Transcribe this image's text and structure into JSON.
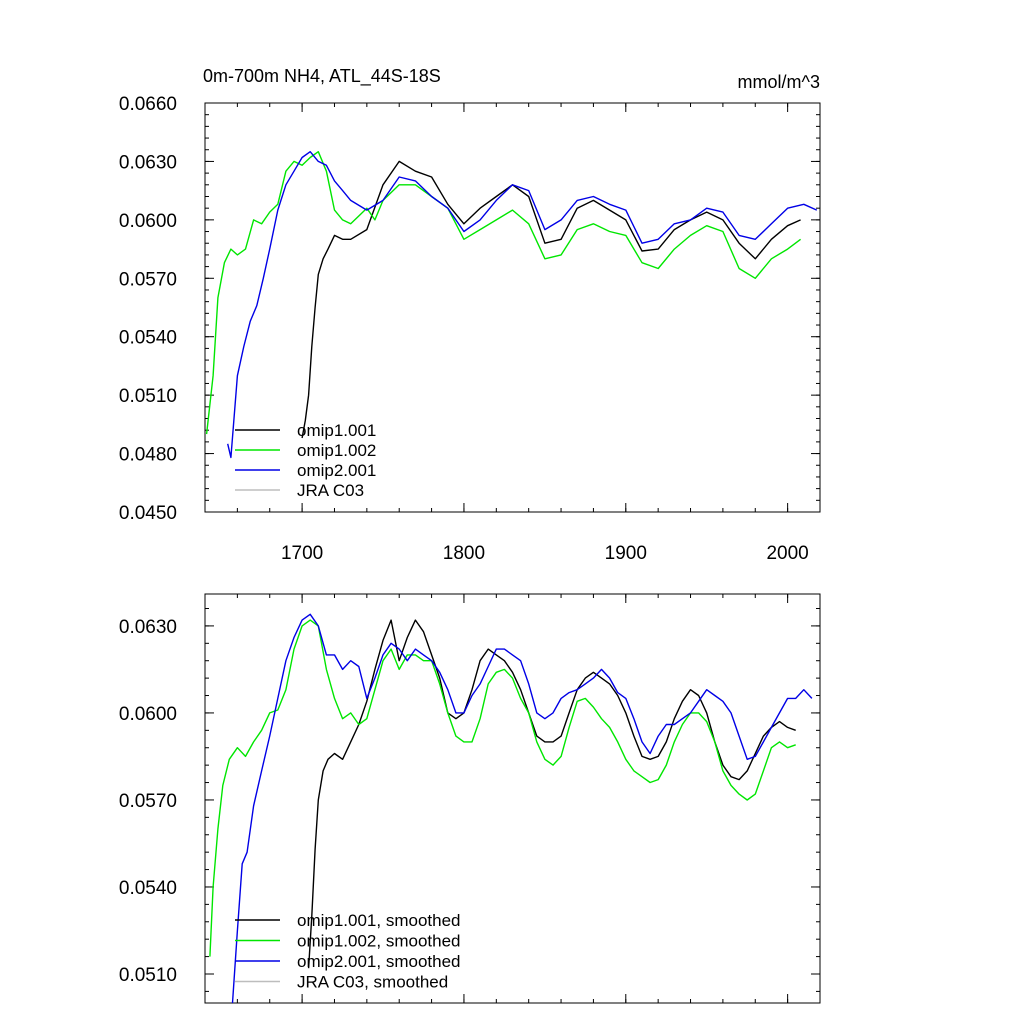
{
  "colors": {
    "omip1_001": "#000000",
    "omip1_002": "#00e600",
    "omip2_001": "#0000e6",
    "jra_c03": "#bdbdbd"
  },
  "chart_data": [
    {
      "type": "line",
      "title": "0m-700m NH4, ATL_44S-18S",
      "units": "mmol/m^3",
      "xlim": [
        1640,
        2020
      ],
      "ylim": [
        0.045,
        0.066
      ],
      "x_ticks": [
        1700,
        1800,
        1900,
        2000
      ],
      "x_tick_labels": [
        "1700",
        "1800",
        "1900",
        "2000"
      ],
      "y_ticks": [
        0.045,
        0.048,
        0.051,
        0.054,
        0.057,
        0.06,
        0.063,
        0.066
      ],
      "y_tick_labels": [
        "0.0450",
        "0.0480",
        "0.0510",
        "0.0540",
        "0.0570",
        "0.0600",
        "0.0630",
        "0.0660"
      ],
      "legend_position": "lower-left",
      "series": [
        {
          "key": "omip1_001",
          "name": "omip1.001",
          "color": "#000000",
          "x": [
            1700,
            1702,
            1704,
            1706,
            1708,
            1710,
            1713,
            1716,
            1720,
            1725,
            1730,
            1740,
            1750,
            1760,
            1770,
            1780,
            1790,
            1800,
            1810,
            1820,
            1830,
            1840,
            1850,
            1860,
            1870,
            1880,
            1890,
            1900,
            1910,
            1920,
            1930,
            1940,
            1950,
            1960,
            1970,
            1980,
            1990,
            2000,
            2008
          ],
          "y": [
            0.0488,
            0.0497,
            0.051,
            0.0535,
            0.0555,
            0.0572,
            0.058,
            0.0585,
            0.0592,
            0.059,
            0.059,
            0.0595,
            0.0618,
            0.063,
            0.0625,
            0.0622,
            0.0608,
            0.0598,
            0.0606,
            0.0612,
            0.0618,
            0.0612,
            0.0588,
            0.059,
            0.0606,
            0.061,
            0.0605,
            0.06,
            0.0584,
            0.0585,
            0.0595,
            0.06,
            0.0604,
            0.06,
            0.0588,
            0.058,
            0.059,
            0.0597,
            0.06
          ]
        },
        {
          "key": "omip1_002",
          "name": "omip1.002",
          "color": "#00e600",
          "x": [
            1641,
            1645,
            1648,
            1652,
            1656,
            1660,
            1665,
            1670,
            1675,
            1680,
            1685,
            1690,
            1695,
            1700,
            1705,
            1710,
            1715,
            1720,
            1725,
            1730,
            1735,
            1740,
            1745,
            1750,
            1760,
            1770,
            1780,
            1790,
            1800,
            1810,
            1820,
            1830,
            1840,
            1850,
            1860,
            1870,
            1880,
            1890,
            1900,
            1910,
            1920,
            1930,
            1940,
            1950,
            1960,
            1970,
            1980,
            1990,
            2000,
            2008
          ],
          "y": [
            0.049,
            0.052,
            0.056,
            0.0578,
            0.0585,
            0.0582,
            0.0585,
            0.06,
            0.0598,
            0.0604,
            0.0608,
            0.0625,
            0.063,
            0.0628,
            0.0632,
            0.0635,
            0.0625,
            0.0605,
            0.06,
            0.0598,
            0.0602,
            0.0606,
            0.06,
            0.061,
            0.0618,
            0.0618,
            0.0612,
            0.0606,
            0.059,
            0.0595,
            0.06,
            0.0605,
            0.0598,
            0.058,
            0.0582,
            0.0595,
            0.0598,
            0.0594,
            0.0592,
            0.0578,
            0.0575,
            0.0585,
            0.0592,
            0.0597,
            0.0594,
            0.0575,
            0.057,
            0.058,
            0.0585,
            0.059
          ]
        },
        {
          "key": "omip2_001",
          "name": "omip2.001",
          "color": "#0000e6",
          "x": [
            1654,
            1656,
            1660,
            1664,
            1668,
            1672,
            1676,
            1680,
            1685,
            1690,
            1695,
            1700,
            1705,
            1710,
            1715,
            1720,
            1725,
            1730,
            1740,
            1750,
            1760,
            1770,
            1780,
            1790,
            1800,
            1810,
            1820,
            1830,
            1840,
            1850,
            1860,
            1870,
            1880,
            1890,
            1900,
            1910,
            1920,
            1930,
            1940,
            1950,
            1960,
            1970,
            1980,
            1990,
            2000,
            2010,
            2018
          ],
          "y": [
            0.0485,
            0.0478,
            0.052,
            0.0535,
            0.0548,
            0.0556,
            0.057,
            0.0585,
            0.0605,
            0.0618,
            0.0625,
            0.0632,
            0.0635,
            0.063,
            0.0628,
            0.062,
            0.0615,
            0.061,
            0.0605,
            0.061,
            0.0622,
            0.062,
            0.0612,
            0.0606,
            0.0594,
            0.06,
            0.061,
            0.0618,
            0.0615,
            0.0595,
            0.06,
            0.061,
            0.0612,
            0.0608,
            0.0605,
            0.0588,
            0.059,
            0.0598,
            0.06,
            0.0606,
            0.0604,
            0.0592,
            0.059,
            0.0598,
            0.0606,
            0.0608,
            0.0605
          ]
        },
        {
          "key": "jra_c03",
          "name": "JRA C03",
          "color": "#bdbdbd",
          "x": [],
          "y": []
        }
      ]
    },
    {
      "type": "line",
      "title": "",
      "units": "",
      "xlim": [
        1640,
        2020
      ],
      "ylim": [
        0.05,
        0.0641
      ],
      "x_ticks": [
        1700,
        1800,
        1900,
        2000
      ],
      "x_tick_labels": [
        "",
        "",
        "",
        ""
      ],
      "y_ticks": [
        0.051,
        0.054,
        0.057,
        0.06,
        0.063
      ],
      "y_tick_labels": [
        "0.0510",
        "0.0540",
        "0.0570",
        "0.0600",
        "0.0630"
      ],
      "legend_position": "lower-left",
      "series": [
        {
          "key": "omip1_001",
          "name": "omip1.001, smoothed",
          "color": "#000000",
          "x": [
            1704,
            1706,
            1708,
            1710,
            1713,
            1716,
            1720,
            1725,
            1730,
            1735,
            1740,
            1745,
            1750,
            1755,
            1760,
            1765,
            1770,
            1775,
            1780,
            1785,
            1790,
            1795,
            1800,
            1805,
            1810,
            1815,
            1820,
            1825,
            1830,
            1835,
            1840,
            1845,
            1850,
            1855,
            1860,
            1865,
            1870,
            1875,
            1880,
            1885,
            1890,
            1895,
            1900,
            1905,
            1910,
            1915,
            1920,
            1925,
            1930,
            1935,
            1940,
            1945,
            1950,
            1955,
            1960,
            1965,
            1970,
            1975,
            1980,
            1985,
            1990,
            1995,
            2000,
            2005
          ],
          "y": [
            0.0512,
            0.053,
            0.0553,
            0.057,
            0.058,
            0.0584,
            0.0586,
            0.0584,
            0.059,
            0.0596,
            0.0604,
            0.0615,
            0.0625,
            0.0632,
            0.0618,
            0.0626,
            0.0632,
            0.0628,
            0.062,
            0.0612,
            0.06,
            0.0598,
            0.06,
            0.0608,
            0.0618,
            0.0622,
            0.062,
            0.0618,
            0.0614,
            0.0608,
            0.06,
            0.0592,
            0.059,
            0.059,
            0.0592,
            0.06,
            0.0608,
            0.0612,
            0.0614,
            0.0612,
            0.061,
            0.0606,
            0.06,
            0.0592,
            0.0585,
            0.0584,
            0.0585,
            0.059,
            0.0598,
            0.0604,
            0.0608,
            0.0606,
            0.06,
            0.059,
            0.0582,
            0.0578,
            0.0577,
            0.058,
            0.0586,
            0.0592,
            0.0595,
            0.0597,
            0.0595,
            0.0594
          ]
        },
        {
          "key": "omip1_002",
          "name": "omip1.002, smoothed",
          "color": "#00e600",
          "x": [
            1643,
            1645,
            1648,
            1651,
            1655,
            1660,
            1665,
            1670,
            1675,
            1680,
            1685,
            1690,
            1695,
            1700,
            1705,
            1710,
            1715,
            1720,
            1725,
            1730,
            1735,
            1740,
            1745,
            1750,
            1755,
            1760,
            1765,
            1770,
            1775,
            1780,
            1785,
            1790,
            1795,
            1800,
            1805,
            1810,
            1815,
            1820,
            1825,
            1830,
            1835,
            1840,
            1845,
            1850,
            1855,
            1860,
            1865,
            1870,
            1875,
            1880,
            1885,
            1890,
            1895,
            1900,
            1905,
            1910,
            1915,
            1920,
            1925,
            1930,
            1935,
            1940,
            1945,
            1950,
            1955,
            1960,
            1965,
            1970,
            1975,
            1980,
            1985,
            1990,
            1995,
            2000,
            2005
          ],
          "y": [
            0.0516,
            0.054,
            0.056,
            0.0575,
            0.0584,
            0.0588,
            0.0585,
            0.059,
            0.0594,
            0.06,
            0.0601,
            0.0608,
            0.0622,
            0.063,
            0.0632,
            0.063,
            0.0615,
            0.0605,
            0.0598,
            0.06,
            0.0596,
            0.0598,
            0.0608,
            0.0618,
            0.0622,
            0.0615,
            0.062,
            0.062,
            0.0618,
            0.0618,
            0.061,
            0.06,
            0.0592,
            0.059,
            0.059,
            0.0598,
            0.061,
            0.0614,
            0.0615,
            0.0612,
            0.0605,
            0.06,
            0.059,
            0.0584,
            0.0582,
            0.0585,
            0.0595,
            0.0604,
            0.0605,
            0.0602,
            0.0598,
            0.0595,
            0.059,
            0.0584,
            0.058,
            0.0578,
            0.0576,
            0.0577,
            0.0582,
            0.059,
            0.0596,
            0.06,
            0.06,
            0.0597,
            0.059,
            0.058,
            0.0575,
            0.0572,
            0.057,
            0.0572,
            0.058,
            0.0588,
            0.059,
            0.0588,
            0.0589
          ]
        },
        {
          "key": "omip2_001",
          "name": "omip2.001, smoothed",
          "color": "#0000e6",
          "x": [
            1657,
            1660,
            1663,
            1666,
            1670,
            1675,
            1680,
            1685,
            1690,
            1695,
            1700,
            1705,
            1710,
            1715,
            1720,
            1725,
            1730,
            1735,
            1740,
            1745,
            1750,
            1755,
            1760,
            1765,
            1770,
            1775,
            1780,
            1785,
            1790,
            1795,
            1800,
            1805,
            1810,
            1815,
            1820,
            1825,
            1830,
            1835,
            1840,
            1845,
            1850,
            1855,
            1860,
            1865,
            1870,
            1875,
            1880,
            1885,
            1890,
            1895,
            1900,
            1905,
            1910,
            1915,
            1920,
            1925,
            1930,
            1935,
            1940,
            1945,
            1950,
            1955,
            1960,
            1965,
            1970,
            1975,
            1980,
            1985,
            1990,
            1995,
            2000,
            2005,
            2010,
            2015
          ],
          "y": [
            0.05,
            0.0525,
            0.0548,
            0.0552,
            0.0568,
            0.058,
            0.0592,
            0.0605,
            0.0618,
            0.0626,
            0.0632,
            0.0634,
            0.063,
            0.062,
            0.062,
            0.0615,
            0.0618,
            0.0616,
            0.0605,
            0.0612,
            0.062,
            0.0624,
            0.0622,
            0.0618,
            0.0622,
            0.062,
            0.0618,
            0.0614,
            0.0608,
            0.06,
            0.06,
            0.0606,
            0.061,
            0.0616,
            0.0622,
            0.0622,
            0.062,
            0.0618,
            0.061,
            0.06,
            0.0598,
            0.06,
            0.0605,
            0.0607,
            0.0608,
            0.061,
            0.0612,
            0.0615,
            0.0612,
            0.0607,
            0.0605,
            0.0598,
            0.059,
            0.0586,
            0.0592,
            0.0596,
            0.0596,
            0.0598,
            0.06,
            0.0604,
            0.0608,
            0.0606,
            0.0604,
            0.06,
            0.0592,
            0.0584,
            0.0585,
            0.059,
            0.0595,
            0.06,
            0.0605,
            0.0605,
            0.0608,
            0.0605
          ]
        },
        {
          "key": "jra_c03",
          "name": "JRA C03, smoothed",
          "color": "#bdbdbd",
          "x": [],
          "y": []
        }
      ]
    }
  ]
}
